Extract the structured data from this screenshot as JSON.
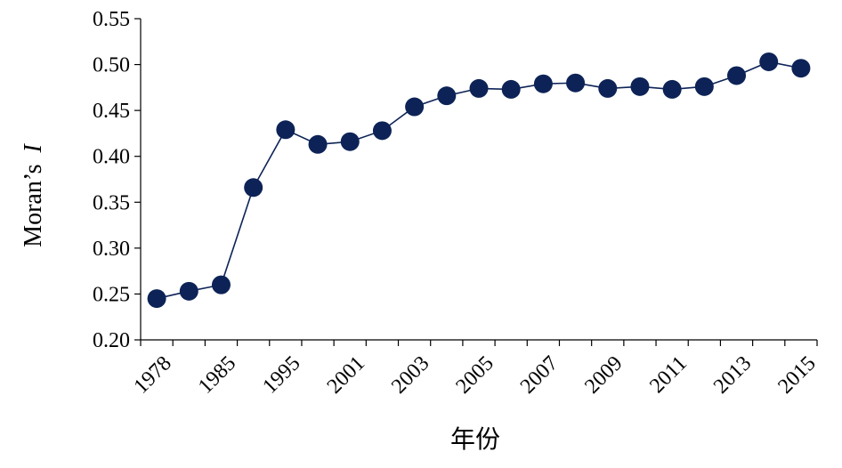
{
  "chart_data": {
    "type": "line",
    "ylabel": "Moran’s",
    "ylabel_italic": "I",
    "xlabel": "年份",
    "ylim": [
      0.2,
      0.55
    ],
    "yticks": [
      "0.20",
      "0.25",
      "0.30",
      "0.35",
      "0.40",
      "0.45",
      "0.50",
      "0.55"
    ],
    "x_tick_labels": [
      "1978",
      "1985",
      "1995",
      "2001",
      "2003",
      "2005",
      "2007",
      "2009",
      "2011",
      "2013",
      "2015"
    ],
    "x_tick_label_every": 2,
    "series": [
      {
        "values": [
          0.245,
          0.253,
          0.26,
          0.366,
          0.429,
          0.413,
          0.416,
          0.428,
          0.454,
          0.466,
          0.474,
          0.473,
          0.479,
          0.48,
          0.474,
          0.476,
          0.473,
          0.476,
          0.488,
          0.503,
          0.496
        ],
        "color": "#0d2357"
      }
    ],
    "grid": false,
    "legend": "none"
  }
}
